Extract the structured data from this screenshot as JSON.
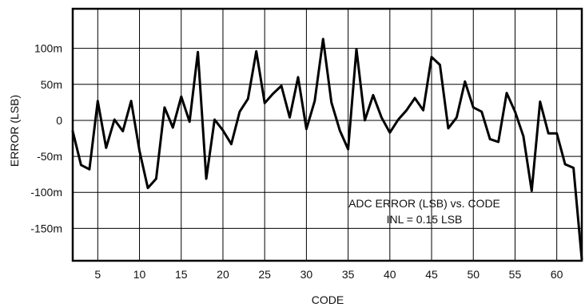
{
  "chart_data": {
    "type": "line",
    "xlabel": "CODE",
    "ylabel": "ERROR (LSB)",
    "xlim": [
      2,
      63
    ],
    "ylim": [
      -0.195,
      0.155
    ],
    "grid": true,
    "colors": {
      "line": "#000000",
      "grid": "#000000",
      "frame": "#000000"
    },
    "x_ticks": [
      5,
      10,
      15,
      20,
      25,
      30,
      35,
      40,
      45,
      50,
      55,
      60
    ],
    "x_tick_labels": [
      "5",
      "10",
      "15",
      "20",
      "25",
      "30",
      "35",
      "40",
      "45",
      "50",
      "55",
      "60"
    ],
    "y_ticks": [
      0.1,
      0.05,
      0,
      -0.05,
      -0.1,
      -0.15
    ],
    "y_tick_labels": [
      "100m",
      "50m",
      "0",
      "-50m",
      "-100m",
      "-150m"
    ],
    "annotation": [
      "ADC ERROR (LSB) vs. CODE",
      "INL = 0.15 LSB"
    ],
    "series": [
      {
        "x": [
          2,
          3,
          4,
          5,
          6,
          7,
          8,
          9,
          10,
          11,
          12,
          13,
          14,
          15,
          16,
          17,
          18,
          19,
          20,
          21,
          22,
          23,
          24,
          25,
          26,
          27,
          28,
          29,
          30,
          31,
          32,
          33,
          34,
          35,
          36,
          37,
          38,
          39,
          40,
          41,
          42,
          43,
          44,
          45,
          46,
          47,
          48,
          49,
          50,
          51,
          52,
          53,
          54,
          55,
          56,
          57,
          58,
          59,
          60,
          61,
          62,
          63
        ],
        "values": [
          -0.015,
          -0.062,
          -0.068,
          0.027,
          -0.038,
          0.001,
          -0.015,
          0.027,
          -0.042,
          -0.094,
          -0.081,
          0.018,
          -0.01,
          0.033,
          -0.002,
          0.095,
          -0.081,
          0.001,
          -0.014,
          -0.033,
          0.012,
          0.03,
          0.096,
          0.024,
          0.037,
          0.048,
          0.004,
          0.06,
          -0.012,
          0.027,
          0.113,
          0.025,
          -0.014,
          -0.04,
          0.099,
          0.0,
          0.035,
          0.004,
          -0.017,
          0.001,
          0.014,
          0.031,
          0.014,
          0.088,
          0.077,
          -0.011,
          0.004,
          0.054,
          0.018,
          0.012,
          -0.026,
          -0.03,
          0.038,
          0.012,
          -0.022,
          -0.098,
          0.026,
          -0.018,
          -0.018,
          -0.061,
          -0.066,
          -0.193
        ]
      }
    ]
  }
}
